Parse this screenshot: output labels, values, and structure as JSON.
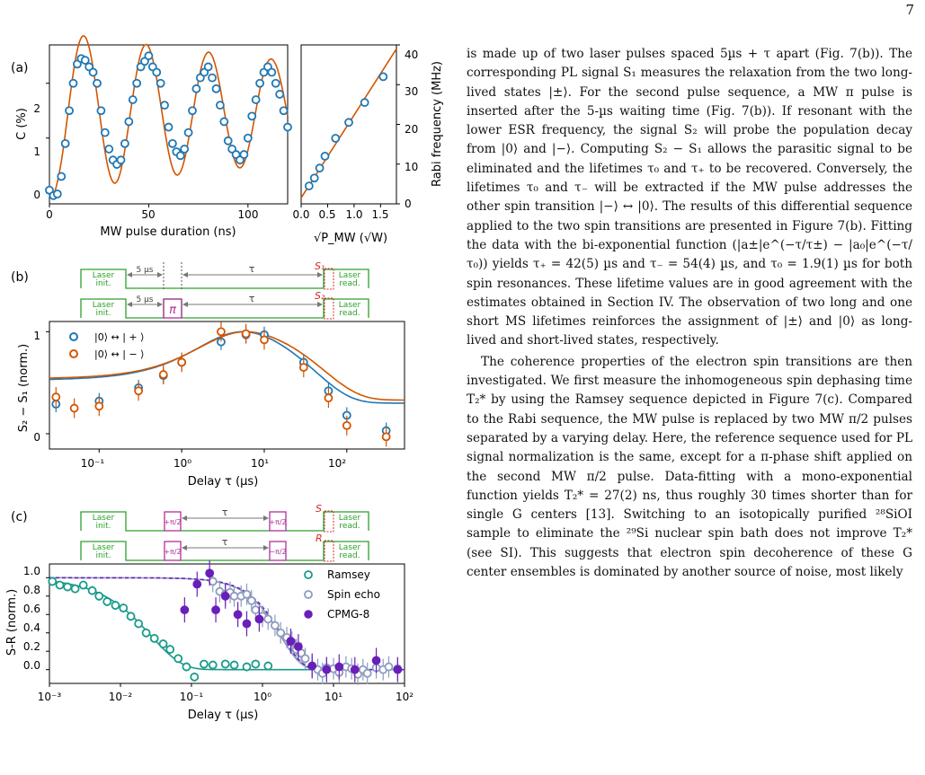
{
  "page_number": "7",
  "paragraphs": [
    "is made up of two laser pulses spaced 5µs + τ apart (Fig. 7(b)). The corresponding PL signal S₁ measures the relaxation from the two long-lived states |±⟩. For the second pulse sequence, a MW π pulse is inserted after the 5-µs waiting time (Fig. 7(b)). If resonant with the lower ESR frequency, the signal S₂ will probe the population decay from |0⟩ and |−⟩. Computing S₂ − S₁ allows the parasitic signal to be eliminated and the lifetimes τ₀ and τ₊ to be recovered. Conversely, the lifetimes τ₀ and τ₋ will be extracted if the MW pulse addresses the other spin transition |−⟩ ↔ |0⟩. The results of this differential sequence applied to the two spin transitions are presented in Figure 7(b). Fitting the data with the bi-exponential function (|a±|e^(−τ/τ±) − |a₀|e^(−τ/τ₀)) yields τ₊ = 42(5) µs and τ₋ = 54(4) µs, and τ₀ = 1.9(1) µs for both spin resonances. These lifetime values are in good agreement with the estimates obtained in Section IV. The observation of two long and one short MS lifetimes reinforces the assignment of |±⟩ and |0⟩ as long-lived and short-lived states, respectively.",
    "The coherence properties of the electron spin transitions are then investigated. We first measure the inhomogeneous spin dephasing time T₂* by using the Ramsey sequence depicted in Figure 7(c). Compared to the Rabi sequence, the MW pulse is replaced by two MW π/2 pulses separated by a varying delay. Here, the reference sequence used for PL signal normalization is the same, except for a π-phase shift applied on the second MW π/2 pulse. Data-fitting with a mono-exponential function yields T₂* = 27(2) ns, thus roughly 30 times shorter than for single G centers [13]. Switching to an isotopically purified ²⁸SiOI sample to eliminate the ²⁹Si nuclear spin bath does not improve T₂* (see SI). This suggests that electron spin decoherence of these G center ensembles is dominated by another source of noise, most likely"
  ],
  "colors": {
    "blue": "#1f77b4",
    "orange": "#d45500",
    "teal": "#1a9a8a",
    "grey": "#8c9bbf",
    "purple": "#6a1fb8",
    "green": "#2ca02c",
    "magenta": "#b0309a",
    "red": "#d62728"
  },
  "panels": {
    "a": {
      "label": "(a)",
      "left": {
        "xlabel": "MW pulse duration (ns)",
        "ylabel": "C (%)",
        "xticks": [
          "0",
          "50",
          "100"
        ],
        "yticks": [
          "0",
          "1",
          "2"
        ]
      },
      "right": {
        "xlabel": "√P_MW (√W)",
        "ylabel": "Rabi frequency (MHz)",
        "xticks": [
          "0.0",
          "0.5",
          "1.0",
          "1.5"
        ],
        "yticks": [
          "0",
          "10",
          "20",
          "30",
          "40"
        ]
      }
    },
    "b": {
      "label": "(b)",
      "seq": {
        "laser_init": [
          "Laser",
          "init."
        ],
        "laser_read": [
          "Laser",
          "read."
        ],
        "wait": "5 µs",
        "tau": "τ",
        "pi": "π",
        "s1": "S₁",
        "s2": "S₂"
      },
      "xlabel": "Delay τ (µs)",
      "ylabel": "S₂ − S₁ (norm.)",
      "xticks": [
        "10⁻¹",
        "10⁰",
        "10¹",
        "10²"
      ],
      "yticks": [
        "0",
        "1"
      ],
      "legend": [
        "|0⟩ ↔ | + ⟩",
        "|0⟩ ↔ | − ⟩"
      ]
    },
    "c": {
      "label": "(c)",
      "seq": {
        "laser_init": [
          "Laser",
          "init."
        ],
        "laser_read": [
          "Laser",
          "read."
        ],
        "tau": "τ",
        "pp": "+π/2",
        "mp": "−π/2",
        "s": "S",
        "r": "R"
      },
      "xlabel": "Delay τ (µs)",
      "ylabel": "S-R (norm.)",
      "xticks": [
        "10⁻³",
        "10⁻²",
        "10⁻¹",
        "10⁰",
        "10¹",
        "10²"
      ],
      "yticks": [
        "0.0",
        "0.2",
        "0.4",
        "0.6",
        "0.8",
        "1.0"
      ],
      "legend": [
        "Ramsey",
        "Spin echo",
        "CPMG-8"
      ]
    }
  },
  "chart_data": [
    {
      "type": "scatter",
      "panel": "a-left",
      "xlabel": "MW pulse duration (ns)",
      "ylabel": "C (%)",
      "xlim": [
        0,
        120
      ],
      "ylim": [
        -0.2,
        2.7
      ],
      "series": [
        {
          "x": [
            0,
            2,
            4,
            6,
            8,
            10,
            12,
            14,
            16,
            18,
            20,
            22,
            24,
            26,
            28,
            30,
            32,
            34,
            36,
            38,
            40,
            42,
            44,
            46,
            48,
            50,
            52,
            54,
            56,
            58,
            60,
            62,
            64,
            66,
            68,
            70,
            72,
            74,
            76,
            78,
            80,
            82,
            84,
            86,
            88,
            90,
            92,
            94,
            96,
            98,
            100,
            102,
            104,
            106,
            108,
            110,
            112,
            114,
            116,
            118,
            120
          ],
          "y": [
            0.05,
            -0.05,
            -0.02,
            0.3,
            0.9,
            1.5,
            2.0,
            2.35,
            2.45,
            2.42,
            2.3,
            2.2,
            2.0,
            1.5,
            1.1,
            0.8,
            0.6,
            0.52,
            0.6,
            0.9,
            1.3,
            1.7,
            2.0,
            2.3,
            2.4,
            2.5,
            2.3,
            2.2,
            2.0,
            1.6,
            1.2,
            0.9,
            0.75,
            0.68,
            0.8,
            1.1,
            1.5,
            1.9,
            2.1,
            2.2,
            2.3,
            2.1,
            1.9,
            1.6,
            1.3,
            0.95,
            0.8,
            0.7,
            0.6,
            0.7,
            1.0,
            1.4,
            1.7,
            2.0,
            2.2,
            2.3,
            2.2,
            2.0,
            1.8,
            1.5,
            1.2
          ]
        }
      ],
      "fit": "damped sine"
    },
    {
      "type": "scatter",
      "panel": "a-right",
      "xlabel": "√P_MW (√W)",
      "ylabel": "Rabi frequency (MHz)",
      "xlim": [
        0,
        1.8
      ],
      "ylim": [
        0,
        40
      ],
      "series": [
        {
          "x": [
            0.15,
            0.25,
            0.35,
            0.45,
            0.65,
            0.9,
            1.2,
            1.55
          ],
          "y": [
            4.5,
            6.5,
            9.0,
            12.0,
            16.5,
            20.5,
            25.5,
            32.0
          ]
        }
      ],
      "fit": "linear"
    },
    {
      "type": "scatter",
      "panel": "b",
      "xlabel": "Delay τ (µs)",
      "ylabel": "S₂ − S₁ (norm.)",
      "xscale": "log",
      "xlim": [
        0.025,
        500
      ],
      "ylim": [
        -0.15,
        1.1
      ],
      "series": [
        {
          "name": "|0⟩ ↔ | + ⟩",
          "x": [
            0.03,
            0.1,
            0.3,
            0.6,
            1,
            3,
            6,
            10,
            30,
            60,
            100,
            300
          ],
          "y": [
            0.29,
            0.32,
            0.45,
            0.57,
            0.7,
            0.9,
            0.97,
            0.97,
            0.7,
            0.42,
            0.18,
            0.03
          ]
        },
        {
          "name": "|0⟩ ↔ | − ⟩",
          "x": [
            0.03,
            0.05,
            0.1,
            0.3,
            0.6,
            1,
            3,
            6,
            10,
            30,
            60,
            100,
            300
          ],
          "y": [
            0.36,
            0.25,
            0.27,
            0.42,
            0.58,
            0.7,
            1.0,
            0.98,
            0.92,
            0.65,
            0.35,
            0.08,
            -0.03
          ]
        }
      ]
    },
    {
      "type": "scatter",
      "panel": "c",
      "xlabel": "Delay τ (µs)",
      "ylabel": "S-R (norm.)",
      "xscale": "log",
      "xlim": [
        0.001,
        100
      ],
      "ylim": [
        -0.15,
        1.15
      ],
      "series": [
        {
          "name": "Ramsey",
          "x": [
            0.0011,
            0.0014,
            0.0018,
            0.0023,
            0.003,
            0.004,
            0.005,
            0.0065,
            0.0085,
            0.011,
            0.014,
            0.018,
            0.023,
            0.03,
            0.04,
            0.05,
            0.065,
            0.085,
            0.11,
            0.15,
            0.2,
            0.3,
            0.4,
            0.6,
            0.8,
            1.2
          ],
          "y": [
            0.96,
            0.92,
            0.9,
            0.88,
            0.92,
            0.86,
            0.8,
            0.74,
            0.7,
            0.67,
            0.58,
            0.5,
            0.4,
            0.34,
            0.28,
            0.22,
            0.12,
            0.03,
            -0.08,
            0.06,
            0.05,
            0.06,
            0.05,
            0.03,
            0.06,
            0.04
          ]
        },
        {
          "name": "Spin echo",
          "x": [
            0.2,
            0.25,
            0.3,
            0.35,
            0.4,
            0.5,
            0.6,
            0.7,
            0.8,
            1,
            1.2,
            1.5,
            1.8,
            2.2,
            2.6,
            3,
            3.5,
            4,
            5,
            6,
            7,
            8,
            10,
            12,
            15,
            18,
            22,
            26,
            30,
            40,
            50,
            60,
            80
          ],
          "y": [
            0.96,
            0.85,
            0.82,
            0.84,
            0.8,
            0.8,
            0.82,
            0.75,
            0.65,
            0.58,
            0.55,
            0.48,
            0.4,
            0.35,
            0.3,
            0.22,
            0.18,
            0.12,
            0.04,
            0.0,
            -0.04,
            0.02,
            0.01,
            -0.03,
            0.03,
            0.01,
            -0.05,
            0.0,
            -0.04,
            0.02,
            0.0,
            0.03,
            0.01
          ]
        },
        {
          "name": "CPMG-8",
          "x": [
            0.08,
            0.12,
            0.18,
            0.22,
            0.3,
            0.45,
            0.6,
            0.9,
            2.5,
            3.2,
            5,
            8,
            12,
            20,
            40,
            80
          ],
          "y": [
            0.65,
            0.93,
            1.05,
            0.65,
            0.8,
            0.6,
            0.5,
            0.55,
            0.31,
            0.25,
            0.04,
            0.0,
            0.03,
            0.0,
            0.1,
            0.0
          ]
        }
      ]
    }
  ]
}
